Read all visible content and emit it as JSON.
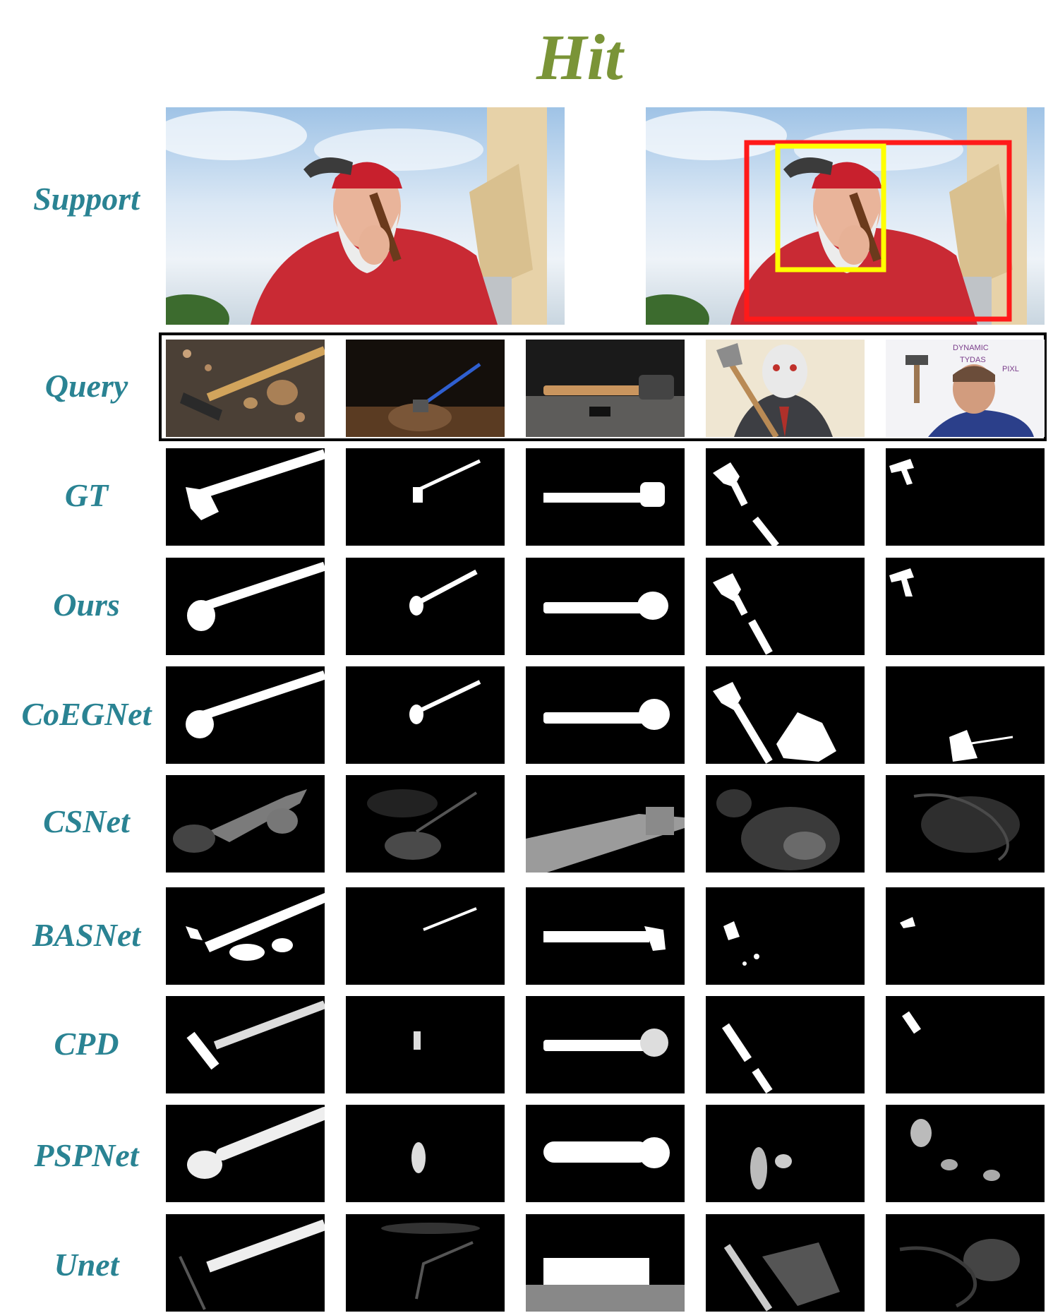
{
  "figure": {
    "title": "Hit",
    "title_color": "#7a9437",
    "label_color": "#2a8393",
    "support_box_colors": {
      "outer": "#ff1a1a",
      "inner": "#ffff00"
    }
  },
  "row_labels": {
    "support": "Support",
    "query": "Query",
    "gt": "GT",
    "ours": "Ours",
    "coegnet": "CoEGNet",
    "csnet": "CSNet",
    "basnet": "BASNet",
    "cpd": "CPD",
    "pspnet": "PSPNet",
    "unet": "Unet"
  },
  "query_subjects": [
    "hammer-and-walnuts",
    "axe-in-stump",
    "hammer-on-anvil",
    "masked-man-with-axe",
    "man-with-hammer-at-whiteboard"
  ],
  "whiteboard_text": [
    "DYNAMIC",
    "TYDAS",
    "PIXL"
  ]
}
